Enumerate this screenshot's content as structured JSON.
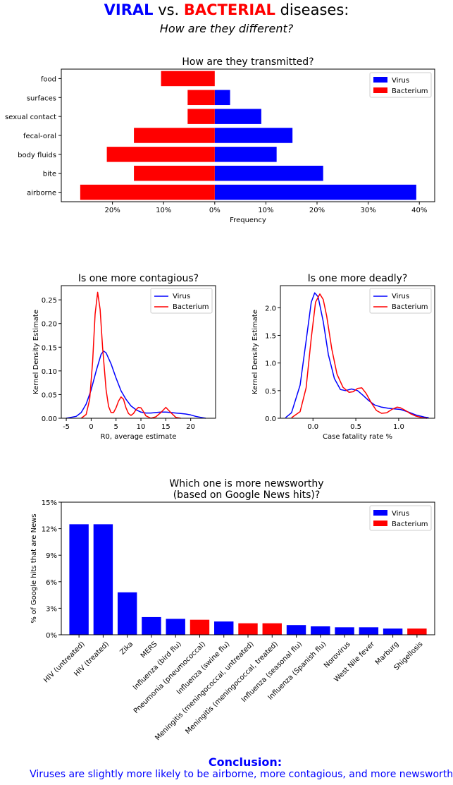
{
  "header": {
    "viral": "VIRAL",
    "vs": "vs.",
    "bacterial": "BACTERIAL",
    "diseases": "diseases:",
    "subtitle": "How are they different?"
  },
  "colors": {
    "virus": "#0000ff",
    "bacterium": "#ff0000"
  },
  "conclusion": {
    "heading": "Conclusion:",
    "text": "Viruses are slightly more likely to be airborne, more contagious, and more newsworthy."
  },
  "chart_data": [
    {
      "type": "bar",
      "orientation": "horizontal",
      "title": "How are they transmitted?",
      "xlabel": "Frequency",
      "ylabel": "",
      "categories": [
        "airborne",
        "bite",
        "body fluids",
        "fecal-oral",
        "sexual contact",
        "surfaces",
        "food"
      ],
      "series": [
        {
          "name": "Virus",
          "values": [
            39.4,
            21.2,
            12.1,
            15.2,
            9.1,
            3.0,
            0
          ]
        },
        {
          "name": "Bacterium",
          "values": [
            -26.3,
            -15.8,
            -21.1,
            -15.8,
            -5.3,
            -5.3,
            -10.5
          ]
        }
      ],
      "xlim": [
        -30,
        43
      ],
      "xticks": [
        -20,
        -10,
        0,
        10,
        20,
        30,
        40
      ],
      "xtick_labels": [
        "20%",
        "10%",
        "0%",
        "10%",
        "20%",
        "30%",
        "40%"
      ],
      "legend": "top-right"
    },
    {
      "type": "line",
      "title": "Is one more contagious?",
      "xlabel": "R0, average estimate",
      "ylabel": "Kernel Density Estimate",
      "xlim": [
        -6,
        25
      ],
      "ylim": [
        0,
        0.28
      ],
      "xticks": [
        -5,
        0,
        5,
        10,
        15,
        20
      ],
      "yticks": [
        0.0,
        0.05,
        0.1,
        0.15,
        0.2,
        0.25
      ],
      "ytick_labels": [
        "0.00",
        "0.05",
        "0.10",
        "0.15",
        "0.20",
        "0.25"
      ],
      "series": [
        {
          "name": "Virus",
          "x": [
            -5,
            -3,
            -2,
            -1,
            0,
            1,
            2,
            2.5,
            3,
            4,
            5,
            6,
            7,
            8,
            9,
            10,
            11,
            12,
            13,
            14,
            15,
            16,
            17,
            18,
            19,
            20,
            21,
            22,
            23
          ],
          "y": [
            0.0,
            0.004,
            0.012,
            0.03,
            0.06,
            0.1,
            0.135,
            0.142,
            0.138,
            0.115,
            0.085,
            0.058,
            0.04,
            0.026,
            0.018,
            0.013,
            0.011,
            0.011,
            0.012,
            0.013,
            0.013,
            0.012,
            0.011,
            0.01,
            0.009,
            0.007,
            0.004,
            0.002,
            0.0
          ]
        },
        {
          "name": "Bacterium",
          "x": [
            -2,
            -1,
            -0.3,
            0.3,
            0.8,
            1.3,
            1.8,
            2.3,
            3,
            3.5,
            4,
            4.5,
            5,
            5.5,
            6,
            6.5,
            7,
            7.5,
            8,
            8.5,
            9,
            9.5,
            10,
            10.5,
            11,
            12,
            13,
            14,
            15,
            16,
            17,
            18
          ],
          "y": [
            0.0,
            0.008,
            0.04,
            0.12,
            0.22,
            0.266,
            0.23,
            0.15,
            0.06,
            0.025,
            0.012,
            0.012,
            0.022,
            0.036,
            0.045,
            0.04,
            0.022,
            0.01,
            0.006,
            0.01,
            0.018,
            0.023,
            0.022,
            0.014,
            0.005,
            0.0,
            0.003,
            0.012,
            0.023,
            0.012,
            0.002,
            0.0
          ]
        }
      ],
      "legend": "top-right"
    },
    {
      "type": "line",
      "title": "Is one more deadly?",
      "xlabel": "Case fatality rate %",
      "ylabel": "Kernel Density Estimate",
      "xlim": [
        -0.38,
        1.42
      ],
      "ylim": [
        0,
        2.4
      ],
      "xticks": [
        0.0,
        0.5,
        1.0
      ],
      "xtick_labels": [
        "0.0",
        "0.5",
        "1.0"
      ],
      "yticks": [
        0.0,
        0.5,
        1.0,
        1.5,
        2.0
      ],
      "ytick_labels": [
        "0.0",
        "0.5",
        "1.0",
        "1.5",
        "2.0"
      ],
      "series": [
        {
          "name": "Virus",
          "x": [
            -0.32,
            -0.25,
            -0.15,
            -0.08,
            -0.02,
            0.02,
            0.06,
            0.12,
            0.18,
            0.25,
            0.32,
            0.38,
            0.45,
            0.52,
            0.58,
            0.65,
            0.72,
            0.8,
            0.88,
            0.95,
            1.02,
            1.1,
            1.2,
            1.3,
            1.35
          ],
          "y": [
            0.01,
            0.1,
            0.6,
            1.4,
            2.1,
            2.27,
            2.2,
            1.75,
            1.15,
            0.72,
            0.52,
            0.5,
            0.53,
            0.5,
            0.42,
            0.32,
            0.24,
            0.2,
            0.18,
            0.17,
            0.16,
            0.12,
            0.06,
            0.02,
            0.01
          ]
        },
        {
          "name": "Bacterium",
          "x": [
            -0.25,
            -0.15,
            -0.08,
            -0.02,
            0.03,
            0.08,
            0.12,
            0.16,
            0.22,
            0.28,
            0.35,
            0.42,
            0.47,
            0.52,
            0.57,
            0.62,
            0.68,
            0.74,
            0.8,
            0.86,
            0.92,
            0.98,
            1.02,
            1.08,
            1.14,
            1.2,
            1.27,
            1.33
          ],
          "y": [
            0.01,
            0.12,
            0.55,
            1.45,
            2.1,
            2.25,
            2.15,
            1.85,
            1.25,
            0.8,
            0.56,
            0.47,
            0.48,
            0.54,
            0.55,
            0.45,
            0.28,
            0.14,
            0.09,
            0.1,
            0.16,
            0.2,
            0.19,
            0.14,
            0.08,
            0.04,
            0.01,
            0.0
          ]
        }
      ],
      "legend": "top-right"
    },
    {
      "type": "bar",
      "title": "Which one is more newsworthy\n(based on Google News hits)?",
      "xlabel": "",
      "ylabel": "% of Google hits that are News",
      "ylim": [
        0,
        15
      ],
      "yticks": [
        0,
        3,
        6,
        9,
        12,
        15
      ],
      "ytick_labels": [
        "0%",
        "3%",
        "6%",
        "9%",
        "12%",
        "15%"
      ],
      "categories": [
        "HIV (untreated)",
        "HIV (treated)",
        "Zika",
        "MERS",
        "Influenza (bird flu)",
        "Pneumonia (pneumococcal)",
        "Influenza (swine flu)",
        "Meningitis (meningococcal, untreated)",
        "Meningitis (meningococcal, treated)",
        "Influenza (seasonal flu)",
        "Influenza (Spanish flu)",
        "Norovirus",
        "West Nile fever",
        "Marburg",
        "Shigellosis"
      ],
      "values": [
        12.5,
        12.5,
        4.8,
        2.0,
        1.8,
        1.7,
        1.5,
        1.3,
        1.3,
        1.1,
        0.95,
        0.85,
        0.85,
        0.7,
        0.7
      ],
      "kind": [
        "Virus",
        "Virus",
        "Virus",
        "Virus",
        "Virus",
        "Bacterium",
        "Virus",
        "Bacterium",
        "Bacterium",
        "Virus",
        "Virus",
        "Virus",
        "Virus",
        "Virus",
        "Bacterium"
      ],
      "legend_labels": [
        "Virus",
        "Bacterium"
      ],
      "legend": "top-right"
    }
  ]
}
